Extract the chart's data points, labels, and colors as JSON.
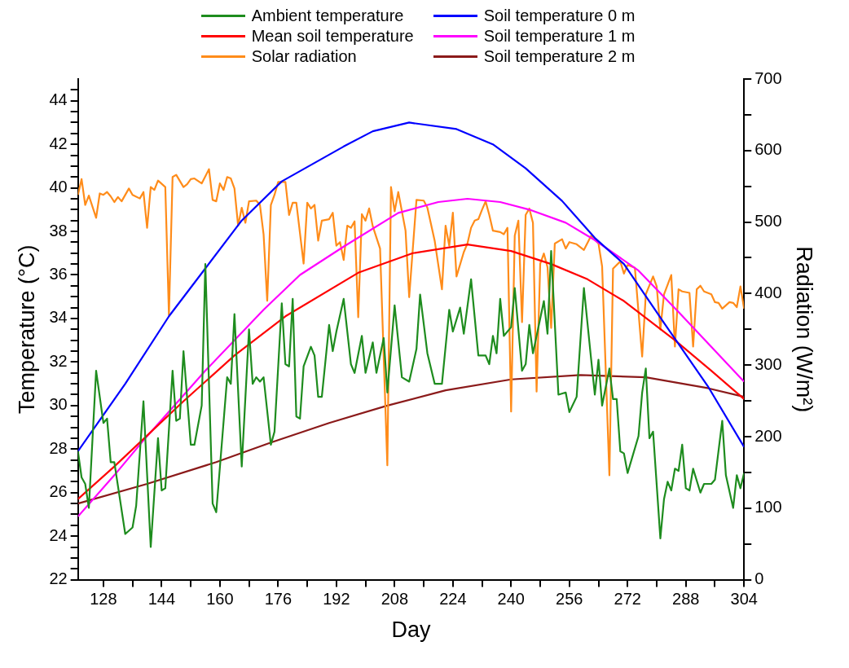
{
  "chart_data": {
    "type": "line",
    "xlabel": "Day",
    "ylabel": "Temperature (°C)",
    "y2label": "Radiation (W/m²)",
    "legend": "top",
    "xlim": [
      121,
      304
    ],
    "ylim": [
      22,
      45
    ],
    "y2lim": [
      0,
      700
    ],
    "xticks": [
      128,
      {
        "value": 136,
        "label": null
      },
      144,
      {
        "value": 152,
        "label": null
      },
      160,
      {
        "value": 168,
        "label": null
      },
      176,
      {
        "value": 184,
        "label": null
      },
      192,
      {
        "value": 200,
        "label": null
      },
      208,
      {
        "value": 216,
        "label": null
      },
      224,
      {
        "value": 232,
        "label": null
      },
      240,
      {
        "value": 248,
        "label": null
      },
      256,
      {
        "value": 264,
        "label": null
      },
      272,
      {
        "value": 280,
        "label": null
      },
      288,
      {
        "value": 296,
        "label": null
      },
      304
    ],
    "yticks": [
      22,
      {
        "value": 22.5,
        "label": null
      },
      {
        "value": 23,
        "label": null
      },
      {
        "value": 23.5,
        "label": null
      },
      24,
      {
        "value": 24.5,
        "label": null
      },
      {
        "value": 25,
        "label": null
      },
      {
        "value": 25.5,
        "label": null
      },
      26,
      {
        "value": 26.5,
        "label": null
      },
      {
        "value": 27,
        "label": null
      },
      {
        "value": 27.5,
        "label": null
      },
      28,
      {
        "value": 28.5,
        "label": null
      },
      {
        "value": 29,
        "label": null
      },
      {
        "value": 29.5,
        "label": null
      },
      30,
      {
        "value": 30.5,
        "label": null
      },
      {
        "value": 31,
        "label": null
      },
      {
        "value": 31.5,
        "label": null
      },
      32,
      {
        "value": 32.5,
        "label": null
      },
      {
        "value": 33,
        "label": null
      },
      {
        "value": 33.5,
        "label": null
      },
      34,
      {
        "value": 34.5,
        "label": null
      },
      {
        "value": 35,
        "label": null
      },
      {
        "value": 35.5,
        "label": null
      },
      36,
      {
        "value": 36.5,
        "label": null
      },
      {
        "value": 37,
        "label": null
      },
      {
        "value": 37.5,
        "label": null
      },
      38,
      {
        "value": 38.5,
        "label": null
      },
      {
        "value": 39,
        "label": null
      },
      {
        "value": 39.5,
        "label": null
      },
      40,
      {
        "value": 40.5,
        "label": null
      },
      {
        "value": 41,
        "label": null
      },
      {
        "value": 41.5,
        "label": null
      },
      42,
      {
        "value": 42.5,
        "label": null
      },
      {
        "value": 43,
        "label": null
      },
      {
        "value": 43.5,
        "label": null
      },
      44,
      {
        "value": 44.5,
        "label": null
      }
    ],
    "y2ticks": [
      0,
      {
        "value": 50,
        "label": null
      },
      100,
      {
        "value": 150,
        "label": null
      },
      200,
      {
        "value": 250,
        "label": null
      },
      300,
      {
        "value": 350,
        "label": null
      },
      400,
      {
        "value": 450,
        "label": null
      },
      500,
      {
        "value": 550,
        "label": null
      },
      600,
      {
        "value": 650,
        "label": null
      },
      700
    ],
    "series": [
      {
        "name": "Ambient temperature",
        "color": "#1e8c1e",
        "x": [
          121,
          122,
          123,
          124,
          126,
          128,
          129,
          130,
          131,
          134,
          136,
          137,
          139,
          141,
          143,
          144,
          145,
          147,
          148,
          149,
          150,
          152,
          153,
          155,
          156,
          158,
          159,
          162,
          163,
          164,
          166,
          168,
          169,
          170,
          171,
          172,
          174,
          175,
          177,
          178,
          179,
          180,
          181,
          182,
          183,
          185,
          186,
          187,
          188,
          190,
          191,
          192,
          194,
          196,
          197,
          199,
          200,
          202,
          203,
          205,
          206,
          208,
          210,
          212,
          214,
          215,
          217,
          219,
          221,
          223,
          224,
          226,
          227,
          229,
          231,
          233,
          234,
          235,
          236,
          237,
          238,
          240,
          241,
          243,
          244,
          245,
          246,
          249,
          250,
          251,
          253,
          255,
          256,
          258,
          260,
          262,
          263,
          264,
          265,
          267,
          268,
          269,
          270,
          271,
          272,
          275,
          276,
          277,
          278,
          279,
          281,
          282,
          283,
          284,
          285,
          286,
          287,
          288,
          289,
          290,
          292,
          293,
          295,
          296,
          298,
          299,
          301,
          302,
          303,
          304
        ],
        "values": [
          27.9,
          26.7,
          26.4,
          25.3,
          31.6,
          29.2,
          29.4,
          27.4,
          27.4,
          24.1,
          24.4,
          25.4,
          30.2,
          23.5,
          28.5,
          26.1,
          26.2,
          31.6,
          29.3,
          29.4,
          32.5,
          28.2,
          28.2,
          30.0,
          36.5,
          25.5,
          25.1,
          31.3,
          31.0,
          34.2,
          27.2,
          33.5,
          31.0,
          31.3,
          31.1,
          31.3,
          28.2,
          28.8,
          34.7,
          31.9,
          31.8,
          34.9,
          29.5,
          29.4,
          31.8,
          32.7,
          32.3,
          30.4,
          30.4,
          33.7,
          32.5,
          33.4,
          34.9,
          31.9,
          31.5,
          33.2,
          31.5,
          32.9,
          31.5,
          33.1,
          30.6,
          34.6,
          31.3,
          31.1,
          32.6,
          35.1,
          32.4,
          31.0,
          31.0,
          34.4,
          33.4,
          34.5,
          33.3,
          35.8,
          32.3,
          32.3,
          31.9,
          33.2,
          32.4,
          34.9,
          33.2,
          33.6,
          35.4,
          31.6,
          31.9,
          33.7,
          32.4,
          34.8,
          33.3,
          37.1,
          30.5,
          30.6,
          29.7,
          30.4,
          35.4,
          32.1,
          30.5,
          32.1,
          30.0,
          31.7,
          30.3,
          30.3,
          27.9,
          27.8,
          26.9,
          28.6,
          30.6,
          31.7,
          28.5,
          28.8,
          23.9,
          25.7,
          26.5,
          26.1,
          27.1,
          27.0,
          28.2,
          26.2,
          26.1,
          27.1,
          26.0,
          26.4,
          26.4,
          26.6,
          29.3,
          26.8,
          25.3,
          26.8,
          26.2,
          26.9
        ]
      },
      {
        "name": "Soil temperature 0 m",
        "color": "#0000ff",
        "x": [
          121,
          134,
          146,
          156,
          166,
          177,
          194,
          202,
          212,
          225,
          235,
          244,
          254,
          263,
          271,
          282,
          294,
          304
        ],
        "values": [
          27.9,
          31.0,
          34.1,
          36.3,
          38.5,
          40.3,
          41.9,
          42.6,
          43.0,
          42.7,
          42.0,
          40.9,
          39.4,
          37.7,
          36.5,
          33.8,
          30.9,
          28.1
        ]
      },
      {
        "name": "Mean soil temperature",
        "color": "#ff0000",
        "x": [
          121,
          131,
          150,
          164,
          178,
          198,
          213,
          228,
          240,
          251,
          261,
          271,
          285,
          295,
          304
        ],
        "values": [
          25.7,
          27.2,
          30.2,
          32.3,
          34.1,
          36.1,
          37.0,
          37.4,
          37.1,
          36.5,
          35.8,
          34.8,
          33.0,
          31.6,
          30.3
        ]
      },
      {
        "name": "Soil temperature 1 m",
        "color": "#ff00ff",
        "x": [
          121,
          131,
          139,
          156,
          172,
          182,
          194,
          209,
          220,
          228,
          237,
          245,
          255,
          263,
          275,
          286,
          295,
          304
        ],
        "values": [
          24.9,
          26.8,
          28.4,
          31.6,
          34.4,
          36.0,
          37.3,
          38.85,
          39.35,
          39.5,
          39.35,
          39.0,
          38.4,
          37.6,
          36.2,
          34.3,
          32.7,
          31.1
        ]
      },
      {
        "name": "Solar radiation",
        "color": "#ff8c1a",
        "axis": "y2",
        "x": [
          121,
          122,
          123,
          124,
          126,
          127,
          128,
          129,
          130,
          131,
          132,
          133,
          135,
          136,
          138,
          139,
          140,
          141,
          142,
          143,
          145,
          146,
          147,
          148,
          150,
          151,
          152,
          153,
          155,
          157,
          158,
          159,
          160,
          161,
          162,
          163,
          164,
          165,
          166,
          167,
          168,
          170,
          171,
          172,
          173,
          174,
          175,
          176,
          178,
          179,
          180,
          181,
          183,
          184,
          185,
          186,
          187,
          188,
          190,
          191,
          192,
          193,
          194,
          195,
          196,
          197,
          198,
          199,
          200,
          201,
          202,
          204,
          206,
          207,
          208,
          209,
          211,
          212,
          214,
          216,
          217,
          219,
          221,
          222,
          223,
          224,
          225,
          227,
          228,
          229,
          230,
          231,
          232,
          233,
          234,
          235,
          237,
          238,
          239,
          240,
          241,
          242,
          243,
          244,
          245,
          246,
          247,
          248,
          249,
          250,
          251,
          252,
          254,
          255,
          256,
          258,
          260,
          262,
          264,
          265,
          267,
          268,
          270,
          271,
          272,
          274,
          276,
          277,
          279,
          280,
          281,
          282,
          284,
          285,
          286,
          287,
          289,
          290,
          291,
          292,
          293,
          295,
          296,
          297,
          298,
          300,
          301,
          302,
          303,
          304
        ],
        "values": [
          538,
          560,
          524,
          537,
          506,
          540,
          538,
          542,
          536,
          528,
          535,
          529,
          547,
          538,
          533,
          542,
          492,
          549,
          545,
          558,
          549,
          370,
          563,
          566,
          549,
          553,
          560,
          561,
          554,
          574,
          531,
          529,
          554,
          545,
          563,
          561,
          547,
          495,
          520,
          499,
          529,
          530,
          524,
          483,
          390,
          524,
          538,
          556,
          556,
          510,
          527,
          527,
          442,
          527,
          519,
          524,
          474,
          502,
          504,
          513,
          467,
          472,
          447,
          495,
          492,
          501,
          367,
          511,
          502,
          519,
          494,
          463,
          160,
          549,
          515,
          542,
          488,
          395,
          531,
          530,
          520,
          474,
          406,
          495,
          467,
          513,
          424,
          458,
          470,
          492,
          502,
          504,
          517,
          529,
          510,
          488,
          486,
          483,
          492,
          235,
          481,
          502,
          360,
          510,
          519,
          499,
          263,
          442,
          456,
          437,
          352,
          470,
          476,
          463,
          472,
          469,
          461,
          481,
          470,
          438,
          146,
          435,
          445,
          428,
          440,
          436,
          312,
          399,
          424,
          410,
          350,
          399,
          426,
          326,
          406,
          403,
          401,
          326,
          406,
          411,
          403,
          399,
          388,
          387,
          379,
          388,
          387,
          381,
          410,
          379
        ]
      },
      {
        "name": "Soil temperature 2 m",
        "color": "#8b1a1a",
        "x": [
          121,
          140,
          159,
          174,
          190,
          206,
          222,
          240,
          259,
          277,
          294,
          304
        ],
        "values": [
          25.5,
          26.4,
          27.4,
          28.3,
          29.2,
          30.0,
          30.7,
          31.2,
          31.4,
          31.3,
          30.8,
          30.4
        ]
      }
    ]
  }
}
